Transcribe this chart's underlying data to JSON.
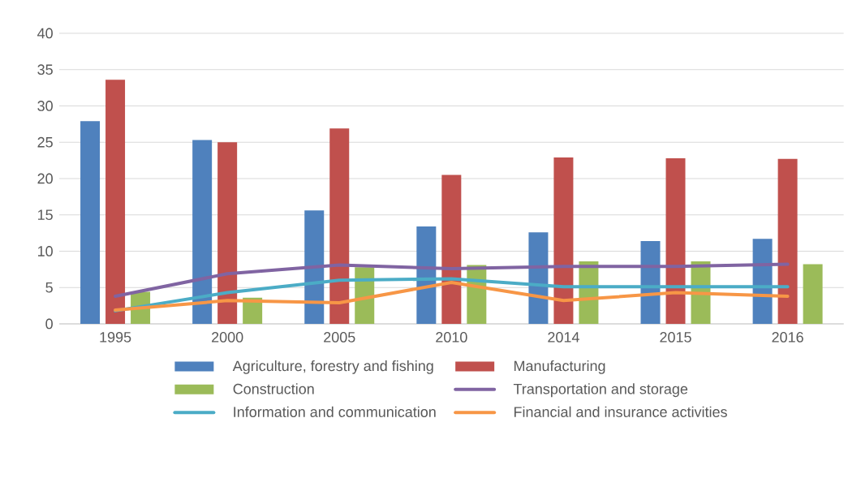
{
  "chart_data": {
    "type": "bar",
    "categories": [
      "1995",
      "2000",
      "2005",
      "2010",
      "2014",
      "2015",
      "2016"
    ],
    "series": [
      {
        "name": "Agriculture, forestry and fishing",
        "color": "#4f81bd",
        "values": [
          27.9,
          25.3,
          15.6,
          13.4,
          12.6,
          11.4,
          11.7
        ]
      },
      {
        "name": "Manufacturing",
        "color": "#c0504d",
        "values": [
          33.6,
          25.0,
          26.9,
          20.5,
          22.9,
          22.8,
          22.7
        ]
      },
      {
        "name": "Construction",
        "color": "#9bbb59",
        "values": [
          4.4,
          3.6,
          7.8,
          8.1,
          8.6,
          8.6,
          8.2
        ]
      },
      {
        "name": "Transportation and storage",
        "type": "line",
        "color": "#8064a2",
        "values": [
          3.8,
          6.9,
          8.1,
          7.6,
          7.9,
          7.9,
          8.2
        ]
      },
      {
        "name": "Information and communication",
        "type": "line",
        "color": "#4bacc6",
        "values": [
          1.8,
          4.3,
          6.0,
          6.2,
          5.1,
          5.1,
          5.1
        ]
      },
      {
        "name": "Financial and insurance activities",
        "type": "line",
        "color": "#f79646",
        "values": [
          1.9,
          3.2,
          2.9,
          5.7,
          3.2,
          4.3,
          3.8
        ]
      }
    ],
    "ylim": [
      0,
      40
    ],
    "yticks": [
      0,
      5,
      10,
      15,
      20,
      25,
      30,
      35,
      40
    ],
    "grid": "y",
    "legend": "bottom"
  }
}
